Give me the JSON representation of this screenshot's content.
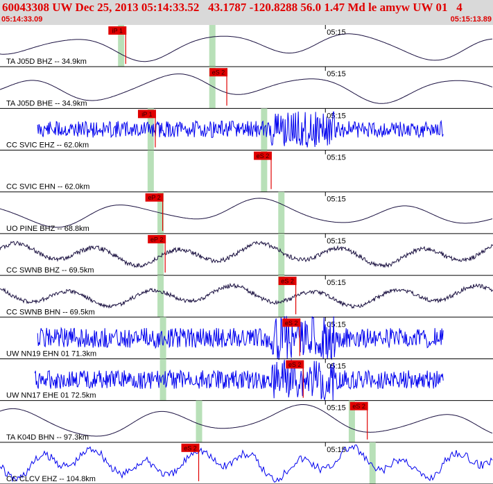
{
  "header": {
    "title": "60043308 UW Dec 25, 2013 05:14:33.52   43.1787 -120.8288 56.0 1.47 Md le amyw UW 01   4",
    "start_time": "05:14:33.09",
    "end_time": "05:15:13.89"
  },
  "minute_mark_label": "05:15",
  "colors": {
    "header_bg": "#d9d9d9",
    "header_text": "#e00000",
    "pick_box": "#e00000",
    "pick_line": "#e00000",
    "shade": "#b8e0b8",
    "trace_black": "#1a1040",
    "trace_blue": "#0000ee",
    "separator": "#000000"
  },
  "traces": [
    {
      "label": "TA J05D BHZ -- 34.9km",
      "color": "black",
      "type": "smooth",
      "amp": 0.35,
      "seed": 3,
      "picks": [
        {
          "label": "iP 1",
          "t": 0.255
        }
      ],
      "shades": [
        0.245,
        0.43
      ]
    },
    {
      "label": "TA J05D BHE -- 34.9km",
      "color": "black",
      "type": "smooth",
      "amp": 0.35,
      "seed": 7,
      "picks": [
        {
          "label": "eS 2",
          "t": 0.46
        }
      ],
      "shades": [
        0.43
      ]
    },
    {
      "label": "CC SVIC EHZ -- 62.0km",
      "color": "blue",
      "type": "noise",
      "amp": 0.25,
      "seed": 11,
      "picks": [
        {
          "label": "iP 1",
          "t": 0.315
        }
      ],
      "shades": [
        0.305,
        0.535
      ]
    },
    {
      "label": "CC SVIC EHN -- 62.0km",
      "color": "blue",
      "type": "flat",
      "amp": 0,
      "seed": 13,
      "picks": [
        {
          "label": "eS 2",
          "t": 0.55
        }
      ],
      "shades": [
        0.305,
        0.535
      ]
    },
    {
      "label": "UO PINE BHZ -- 68.8km",
      "color": "black",
      "type": "smooth",
      "amp": 0.33,
      "seed": 17,
      "picks": [
        {
          "label": "eP 2",
          "t": 0.33
        }
      ],
      "shades": [
        0.325,
        0.57
      ]
    },
    {
      "label": "CC SWNB BHZ -- 69.5km",
      "color": "black",
      "type": "mixed",
      "amp": 0.3,
      "seed": 19,
      "picks": [
        {
          "label": "eP 2",
          "t": 0.335
        }
      ],
      "shades": [
        0.325,
        0.57
      ]
    },
    {
      "label": "CC SWNB BHN -- 69.5km",
      "color": "black",
      "type": "mixed",
      "amp": 0.28,
      "seed": 23,
      "picks": [
        {
          "label": "eS 2",
          "t": 0.6
        }
      ],
      "shades": [
        0.325,
        0.57
      ]
    },
    {
      "label": "UW NN19 EHN 01 71.3km",
      "color": "blue",
      "type": "noise",
      "amp": 0.3,
      "seed": 29,
      "picks": [
        {
          "label": "eS 2",
          "t": 0.608
        }
      ],
      "shades": [
        0.33
      ]
    },
    {
      "label": "UW NN17 EHE 01 72.5km",
      "color": "blue",
      "type": "noise",
      "amp": 0.28,
      "seed": 31,
      "picks": [
        {
          "label": "eS 2",
          "t": 0.615
        }
      ],
      "shades": [
        0.33
      ]
    },
    {
      "label": "TA K04D BHN -- 97.3km",
      "color": "black",
      "type": "smooth",
      "amp": 0.38,
      "seed": 37,
      "picks": [
        {
          "label": "eS 2",
          "t": 0.745
        }
      ],
      "shades": [
        0.403,
        0.713
      ]
    },
    {
      "label": "CC CLCV EHZ -- 104.8km",
      "color": "blue",
      "type": "lowfreq",
      "amp": 0.42,
      "seed": 41,
      "picks": [
        {
          "label": "eS 2",
          "t": 0.403
        }
      ],
      "shades": [
        0.755
      ]
    }
  ]
}
